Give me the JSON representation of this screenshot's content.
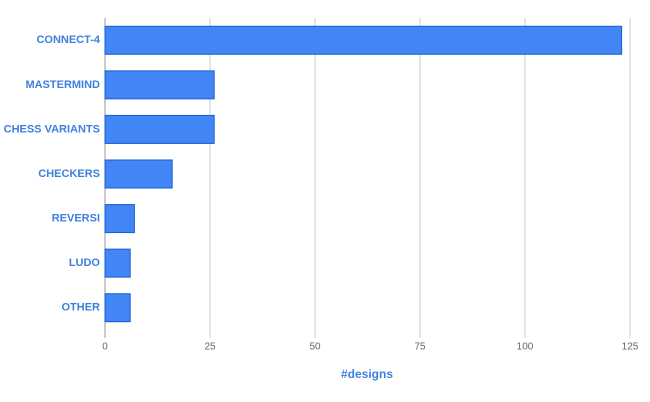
{
  "chart_data": {
    "type": "bar",
    "orientation": "horizontal",
    "categories": [
      "CONNECT-4",
      "MASTERMIND",
      "CHESS VARIANTS",
      "CHECKERS",
      "REVERSI",
      "LUDO",
      "OTHER"
    ],
    "values": [
      123,
      26,
      26,
      16,
      7,
      6,
      6
    ],
    "color": "#4285f4",
    "x_label": "#designs",
    "xlim": [
      0,
      125
    ],
    "xticks": [
      0,
      25,
      50,
      75,
      100,
      125
    ],
    "grid": true
  }
}
